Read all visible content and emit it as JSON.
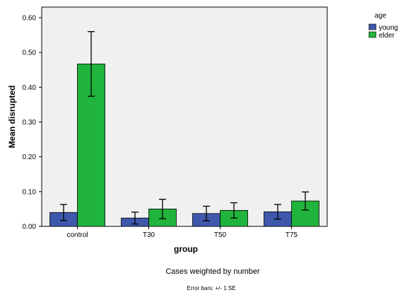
{
  "chart_data": {
    "type": "bar",
    "categories": [
      "control",
      "T30",
      "T50",
      "T75"
    ],
    "series": [
      {
        "name": "young",
        "values": [
          0.04,
          0.024,
          0.037,
          0.042
        ],
        "error": [
          0.023,
          0.017,
          0.021,
          0.021
        ],
        "color": "#3E58AC"
      },
      {
        "name": "elder",
        "values": [
          0.467,
          0.05,
          0.046,
          0.073
        ],
        "error": [
          0.093,
          0.028,
          0.022,
          0.026
        ],
        "color": "#20B43C"
      }
    ],
    "xlabel": "group",
    "ylabel": "Mean disrupted",
    "ylim": [
      0,
      0.6
    ],
    "yticks": [
      "0.00",
      "0.10",
      "0.20",
      "0.30",
      "0.40",
      "0.50",
      "0.60"
    ],
    "ytick_values": [
      0,
      0.1,
      0.2,
      0.3,
      0.4,
      0.5,
      0.6
    ],
    "legend_title": "age",
    "legend_position": "top-right",
    "grid": false,
    "plot_background": "#F0F0F0",
    "footnotes": [
      "Cases weighted by number",
      "Error bars: +/- 1 SE"
    ]
  }
}
